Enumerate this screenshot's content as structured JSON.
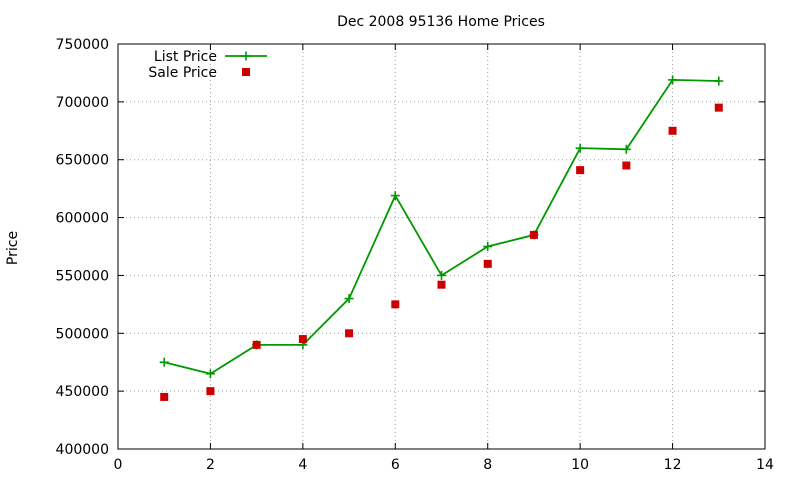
{
  "chart_data": {
    "type": "line",
    "title": "Dec 2008 95136 Home Prices",
    "xlabel": "",
    "ylabel": "Price",
    "xlim": [
      0,
      14
    ],
    "ylim": [
      400000,
      750000
    ],
    "xticks": [
      0,
      2,
      4,
      6,
      8,
      10,
      12,
      14
    ],
    "yticks": [
      400000,
      450000,
      500000,
      550000,
      600000,
      650000,
      700000,
      750000
    ],
    "xtick_labels": [
      "0",
      "2",
      "4",
      "6",
      "8",
      "10",
      "12",
      "14"
    ],
    "ytick_labels": [
      "400000",
      "450000",
      "500000",
      "550000",
      "600000",
      "650000",
      "700000",
      "750000"
    ],
    "grid": true,
    "legend_position": "top-left",
    "series": [
      {
        "name": "List Price",
        "style": "lines+points",
        "marker": "plus",
        "color": "#009900",
        "x": [
          1,
          2,
          3,
          4,
          5,
          6,
          7,
          8,
          9,
          10,
          11,
          12,
          13
        ],
        "y": [
          475000,
          465000,
          490000,
          490000,
          530000,
          619000,
          550000,
          575000,
          585000,
          660000,
          659000,
          719000,
          718000
        ]
      },
      {
        "name": "Sale Price",
        "style": "points",
        "marker": "square",
        "color": "#cc0000",
        "x": [
          1,
          2,
          3,
          4,
          5,
          6,
          7,
          8,
          9,
          10,
          11,
          12,
          13
        ],
        "y": [
          445000,
          450000,
          490000,
          495000,
          500000,
          525000,
          542000,
          560000,
          585000,
          641000,
          645000,
          675000,
          695000
        ]
      }
    ]
  }
}
